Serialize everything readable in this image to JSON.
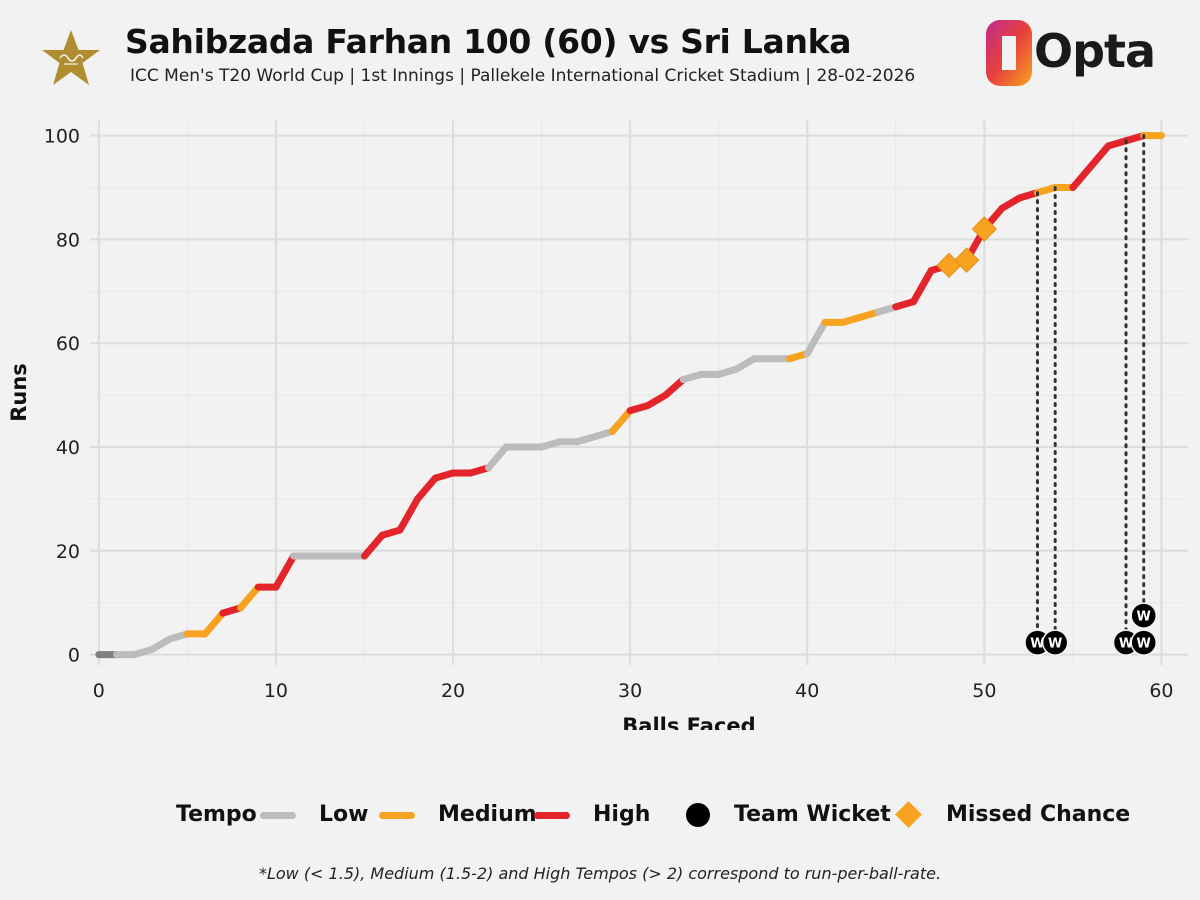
{
  "header": {
    "title": "Sahibzada Farhan 100 (60) vs Sri Lanka",
    "subtitle": "ICC Men's T20 World Cup | 1st Innings | Pallekele International Cricket Stadium | 28-02-2026",
    "brand": "Opta"
  },
  "colors": {
    "background": "#f2f2f2",
    "grid": "#dcdcdc",
    "low": "#bcbcbc",
    "medium": "#f7a321",
    "high": "#e3242b",
    "wicket": "#000000",
    "missed": "#f7a321",
    "emblem": "#b08d2e",
    "start": "#7f7f7f"
  },
  "chart_data": {
    "type": "line",
    "xlabel": "Balls Faced",
    "ylabel": "Runs",
    "xlim": [
      -0.5,
      61.5
    ],
    "ylim": [
      -2,
      103
    ],
    "xticks": [
      0,
      10,
      20,
      30,
      40,
      50,
      60
    ],
    "yticks": [
      0,
      20,
      40,
      60,
      80,
      100
    ],
    "grid": true,
    "points": [
      {
        "x": 0,
        "y": 0
      },
      {
        "x": 1,
        "y": 0
      },
      {
        "x": 2,
        "y": 0
      },
      {
        "x": 3,
        "y": 1
      },
      {
        "x": 4,
        "y": 3
      },
      {
        "x": 5,
        "y": 4
      },
      {
        "x": 6,
        "y": 4
      },
      {
        "x": 7,
        "y": 8
      },
      {
        "x": 8,
        "y": 9
      },
      {
        "x": 9,
        "y": 13
      },
      {
        "x": 10,
        "y": 13
      },
      {
        "x": 11,
        "y": 19
      },
      {
        "x": 12,
        "y": 19
      },
      {
        "x": 13,
        "y": 19
      },
      {
        "x": 14,
        "y": 19
      },
      {
        "x": 15,
        "y": 19
      },
      {
        "x": 16,
        "y": 23
      },
      {
        "x": 17,
        "y": 24
      },
      {
        "x": 18,
        "y": 30
      },
      {
        "x": 19,
        "y": 34
      },
      {
        "x": 20,
        "y": 35
      },
      {
        "x": 21,
        "y": 35
      },
      {
        "x": 22,
        "y": 36
      },
      {
        "x": 23,
        "y": 40
      },
      {
        "x": 24,
        "y": 40
      },
      {
        "x": 25,
        "y": 40
      },
      {
        "x": 26,
        "y": 41
      },
      {
        "x": 27,
        "y": 41
      },
      {
        "x": 28,
        "y": 42
      },
      {
        "x": 29,
        "y": 43
      },
      {
        "x": 30,
        "y": 47
      },
      {
        "x": 31,
        "y": 48
      },
      {
        "x": 32,
        "y": 50
      },
      {
        "x": 33,
        "y": 53
      },
      {
        "x": 34,
        "y": 54
      },
      {
        "x": 35,
        "y": 54
      },
      {
        "x": 36,
        "y": 55
      },
      {
        "x": 37,
        "y": 57
      },
      {
        "x": 38,
        "y": 57
      },
      {
        "x": 39,
        "y": 57
      },
      {
        "x": 40,
        "y": 58
      },
      {
        "x": 41,
        "y": 64
      },
      {
        "x": 42,
        "y": 64
      },
      {
        "x": 43,
        "y": 65
      },
      {
        "x": 44,
        "y": 66
      },
      {
        "x": 45,
        "y": 67
      },
      {
        "x": 46,
        "y": 68
      },
      {
        "x": 47,
        "y": 74
      },
      {
        "x": 48,
        "y": 75
      },
      {
        "x": 49,
        "y": 76
      },
      {
        "x": 50,
        "y": 82
      },
      {
        "x": 51,
        "y": 86
      },
      {
        "x": 52,
        "y": 88
      },
      {
        "x": 53,
        "y": 89
      },
      {
        "x": 54,
        "y": 90
      },
      {
        "x": 55,
        "y": 90
      },
      {
        "x": 56,
        "y": 94
      },
      {
        "x": 57,
        "y": 98
      },
      {
        "x": 58,
        "y": 99
      },
      {
        "x": 59,
        "y": 100
      },
      {
        "x": 60,
        "y": 100
      }
    ],
    "segment_tempo": [
      "start",
      "low",
      "low",
      "low",
      "low",
      "medium",
      "medium",
      "high",
      "medium",
      "high",
      "high",
      "low",
      "low",
      "low",
      "low",
      "high",
      "high",
      "high",
      "high",
      "high",
      "high",
      "high",
      "low",
      "low",
      "low",
      "low",
      "low",
      "low",
      "low",
      "medium",
      "high",
      "high",
      "high",
      "low",
      "low",
      "low",
      "low",
      "low",
      "low",
      "medium",
      "low",
      "medium",
      "medium",
      "medium",
      "low",
      "high",
      "high",
      "high",
      "high",
      "high",
      "high",
      "high",
      "high",
      "medium",
      "medium",
      "high",
      "high",
      "high",
      "high",
      "medium"
    ],
    "missed_chances": [
      {
        "x": 48,
        "y": 75
      },
      {
        "x": 49,
        "y": 76
      },
      {
        "x": 50,
        "y": 82
      }
    ],
    "team_wickets": [
      {
        "ball": 53,
        "runs": 89,
        "label": "W"
      },
      {
        "ball": 54,
        "runs": 90,
        "label": "W"
      },
      {
        "ball": 58,
        "runs": 99,
        "label": "W"
      },
      {
        "ball": 59,
        "runs": 100,
        "label": "W"
      },
      {
        "ball": 59,
        "runs": 100,
        "label": "W"
      }
    ]
  },
  "legend": {
    "title": "Tempo",
    "low": "Low",
    "medium": "Medium",
    "high": "High",
    "wicket": "Team Wicket",
    "missed": "Missed Chance"
  },
  "footnote": "*Low (< 1.5), Medium (1.5-2) and High Tempos (> 2) correspond to run-per-ball-rate."
}
